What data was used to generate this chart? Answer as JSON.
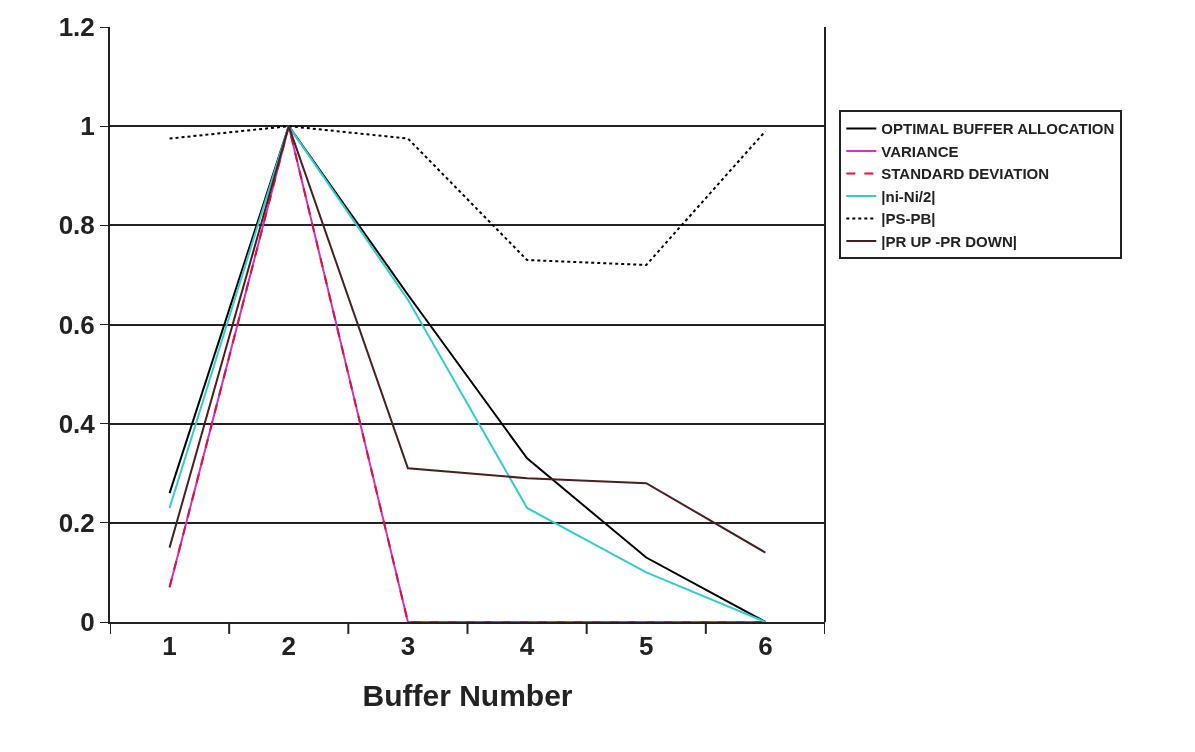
{
  "chart_data": {
    "type": "line",
    "xlabel": "Buffer Number",
    "categories": [
      "1",
      "2",
      "3",
      "4",
      "5",
      "6"
    ],
    "series": [
      {
        "name": "OPTIMAL BUFFER ALLOCATION",
        "color": "#000000",
        "line_style": "solid",
        "values": [
          0.26,
          1,
          0.66,
          0.33,
          0.13,
          0
        ]
      },
      {
        "name": "VARIANCE",
        "color": "#cc33cc",
        "line_style": "solid",
        "values": [
          0.07,
          1,
          0,
          0,
          0,
          0
        ]
      },
      {
        "name": "STANDARD DEVIATION",
        "color": "#e0103a",
        "line_style": "dashed",
        "values": [
          0.07,
          1,
          0,
          0,
          0,
          0
        ]
      },
      {
        "name": "|ni-Ni/2|",
        "color": "#33cccc",
        "line_style": "solid",
        "values": [
          0.23,
          1,
          0.65,
          0.23,
          0.1,
          0
        ]
      },
      {
        "name": "|PS-PB|",
        "color": "#000000",
        "line_style": "dotted",
        "values": [
          0.975,
          1,
          0.975,
          0.73,
          0.72,
          0.99
        ]
      },
      {
        "name": "|PR UP -PR DOWN|",
        "color": "#4a1f1f",
        "line_style": "solid",
        "values": [
          0.15,
          1,
          0.31,
          0.29,
          0.28,
          0.14
        ]
      }
    ],
    "ylim": [
      0,
      1.2
    ],
    "yticks": [
      0,
      0.2,
      0.4,
      0.6,
      0.8,
      1,
      1.2
    ],
    "grid": "y",
    "legend": "right",
    "marker": "none"
  }
}
